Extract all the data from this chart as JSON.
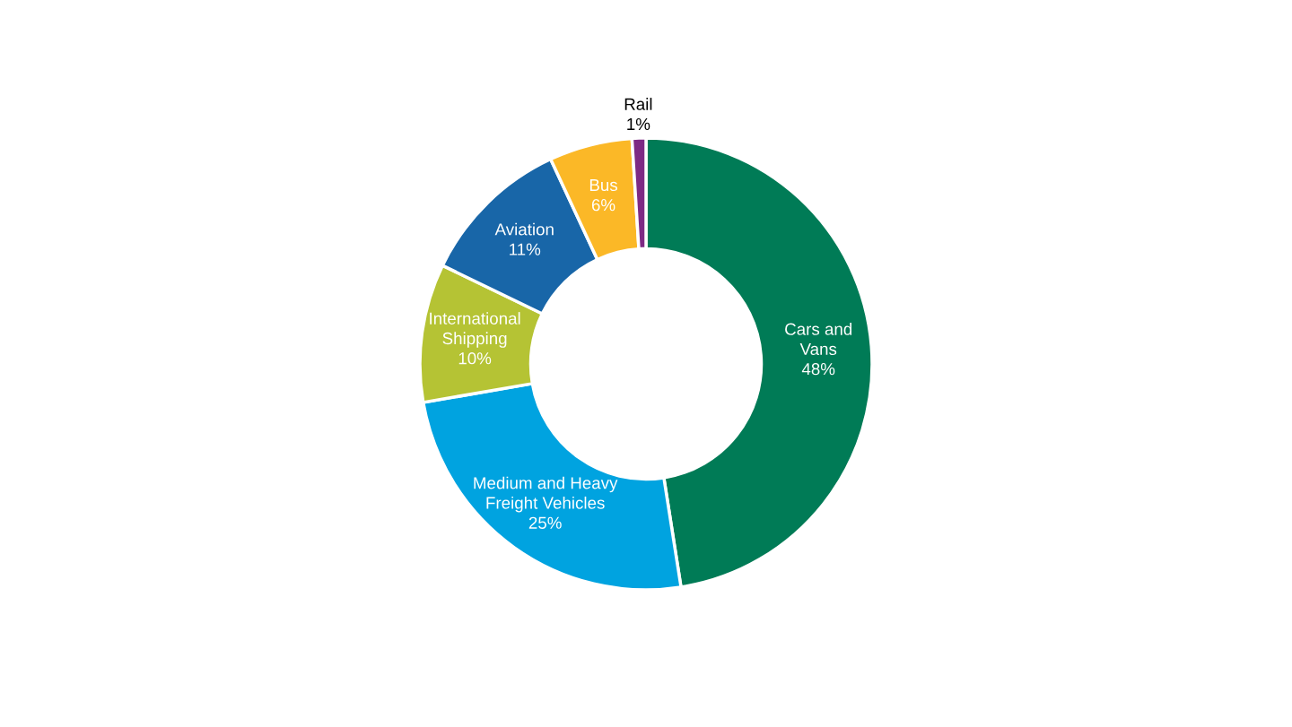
{
  "chart_data": {
    "type": "donut",
    "categories": [
      "Cars and\nVans",
      "Medium and Heavy\nFreight Vehicles",
      "International\nShipping",
      "Aviation",
      "Bus",
      "Rail"
    ],
    "values": [
      48,
      25,
      10,
      11,
      6,
      1
    ],
    "colors": [
      "#007b56",
      "#00a3e0",
      "#b5c334",
      "#1866a8",
      "#fbb827",
      "#7d2a84"
    ],
    "value_labels": [
      "48%",
      "25%",
      "10%",
      "11%",
      "6%",
      "1%"
    ],
    "legend": false
  }
}
